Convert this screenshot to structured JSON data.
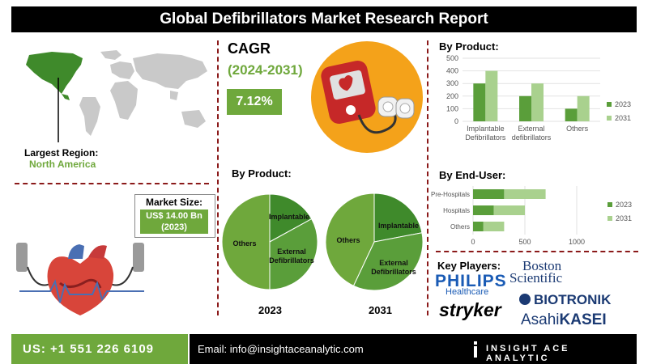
{
  "header": {
    "title": "Global Defibrillators Market Research Report"
  },
  "region": {
    "label": "Largest Region:",
    "value": "North America"
  },
  "market_size": {
    "label": "Market Size:",
    "value_line1": "US$ 14.00 Bn",
    "value_line2": "(2023)"
  },
  "cagr": {
    "label": "CAGR",
    "period": "(2024-2031)",
    "value": "7.12%"
  },
  "pie_section": {
    "title": "By Product:",
    "year_2023": "2023",
    "year_2031": "2031"
  },
  "product_bar": {
    "title": "By Product:"
  },
  "enduser_bar": {
    "title": "By End-User:"
  },
  "key_players": {
    "title": "Key Players:",
    "philips_line1": "PHILIPS",
    "philips_line2": "Healthcare",
    "boston_line1": "Boston",
    "boston_line2": "Scientific",
    "biotronik": "BIOTRONIK",
    "stryker": "stryker",
    "asahi_1": "Asahi",
    "asahi_2": "KASEI"
  },
  "footer": {
    "phone": "US: +1 551 226 6109",
    "email": "Email: info@insightaceanalytic.com",
    "brand": "INSIGHT ACE ANALYTIC"
  },
  "colors": {
    "dark_green": "#5a9e3a",
    "light_green": "#a9d18e",
    "accent_green": "#6fa83c",
    "divider": "#8b1a1a",
    "orange": "#f4a21a"
  },
  "chart_data": [
    {
      "type": "bar",
      "title": "By Product:",
      "categories": [
        "Implantable Defibrillators",
        "External defibrillators",
        "Others"
      ],
      "category_lines": [
        [
          "Implantable",
          "Defibrillators"
        ],
        [
          "External",
          "defibrillators"
        ],
        [
          "Others"
        ]
      ],
      "series": [
        {
          "name": "2023",
          "values": [
            300,
            200,
            100
          ]
        },
        {
          "name": "2031",
          "values": [
            400,
            300,
            200
          ]
        }
      ],
      "ylim": [
        0,
        500
      ],
      "yticks": [
        0,
        100,
        200,
        300,
        400,
        500
      ],
      "legend": "right"
    },
    {
      "type": "bar",
      "orientation": "horizontal",
      "title": "By End-User:",
      "categories": [
        "Pre-Hospitals",
        "Hospitals",
        "Others"
      ],
      "series": [
        {
          "name": "2023",
          "values": [
            300,
            200,
            100
          ]
        },
        {
          "name": "2031",
          "values": [
            400,
            300,
            200
          ]
        }
      ],
      "xlim": [
        0,
        1000
      ],
      "xticks": [
        0,
        500,
        1000
      ],
      "stacked": true,
      "legend": "right"
    },
    {
      "type": "pie",
      "title": "2023",
      "labels": [
        "Implantable",
        "External Defibrillators",
        "Others"
      ],
      "label_lines": [
        [
          "Implantable"
        ],
        [
          "External",
          "Defibrillators"
        ],
        [
          "Others"
        ]
      ],
      "values": [
        17,
        33,
        50
      ]
    },
    {
      "type": "pie",
      "title": "2031",
      "labels": [
        "Implantable",
        "External Defibrillators",
        "Others"
      ],
      "label_lines": [
        [
          "Implantable"
        ],
        [
          "External",
          "Defibrillators"
        ],
        [
          "Others"
        ]
      ],
      "values": [
        22,
        35,
        43
      ]
    }
  ]
}
